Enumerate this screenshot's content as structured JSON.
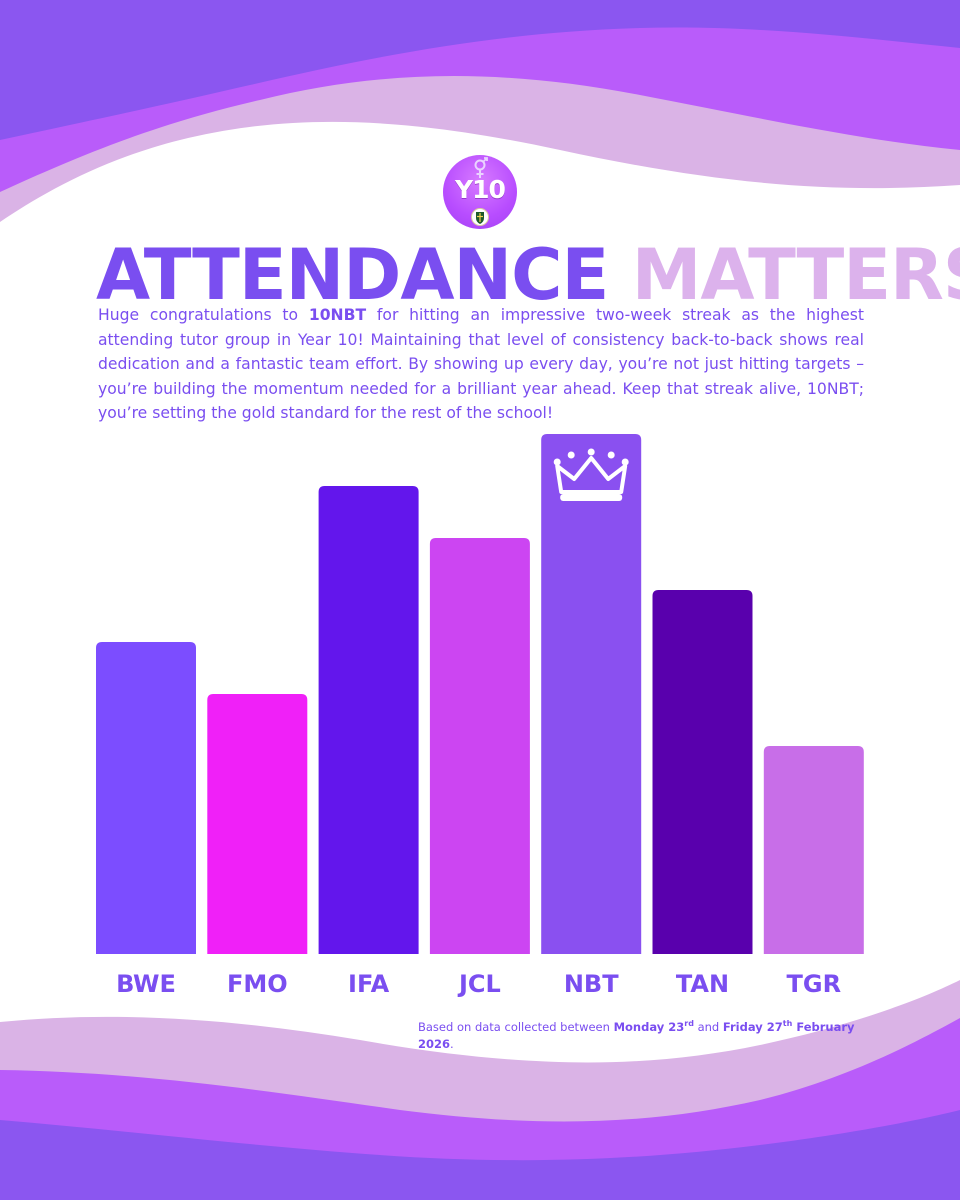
{
  "colors": {
    "wave_deep": "#8b56f0",
    "wave_mid": "#b95cfa",
    "wave_light": "#dab3e6",
    "title_primary": "#7a4ef0",
    "title_secondary": "#dcb2ec"
  },
  "badge": {
    "text": "Y10",
    "symbol_icon": "gender-symbol-icon",
    "crest_icon": "school-crest-icon"
  },
  "title": {
    "part1": "ATTENDANCE",
    "part2": "MATTERS"
  },
  "body": {
    "p1": "Huge congratulations to ",
    "p1_bold": "10NBT",
    "p2": " for hitting an impressive two-week streak as the highest attending tutor group in Year 10! Maintaining that level of consistency back-to-back shows real dedication and a fantastic team effort. By showing up every day, you’re not just hitting targets – you’re building the momentum needed for a brilliant year ahead. Keep that streak alive, 10NBT; you’re setting the gold standard for the rest of the school!"
  },
  "chart_data": {
    "type": "bar",
    "title": "",
    "xlabel": "",
    "ylabel": "",
    "ylim": [
      0,
      100
    ],
    "categories": [
      "BWE",
      "FMO",
      "IFA",
      "JCL",
      "NBT",
      "TAN",
      "TGR"
    ],
    "values": [
      60,
      50,
      90,
      80,
      100,
      70,
      40
    ],
    "colors": [
      "#7c4dff",
      "#f020f8",
      "#6316ec",
      "#cc45f2",
      "#8a50f0",
      "#5900ad",
      "#c86ee8"
    ],
    "winner": "NBT",
    "winner_icon": "crown-icon"
  },
  "footnote": {
    "prefix": "Based on data collected between ",
    "start_day": "Monday 23",
    "start_sup": "rd",
    "middle": " and ",
    "end_day": "Friday 27",
    "end_sup": "th",
    "end_rest": " February 2026",
    "suffix": "."
  }
}
